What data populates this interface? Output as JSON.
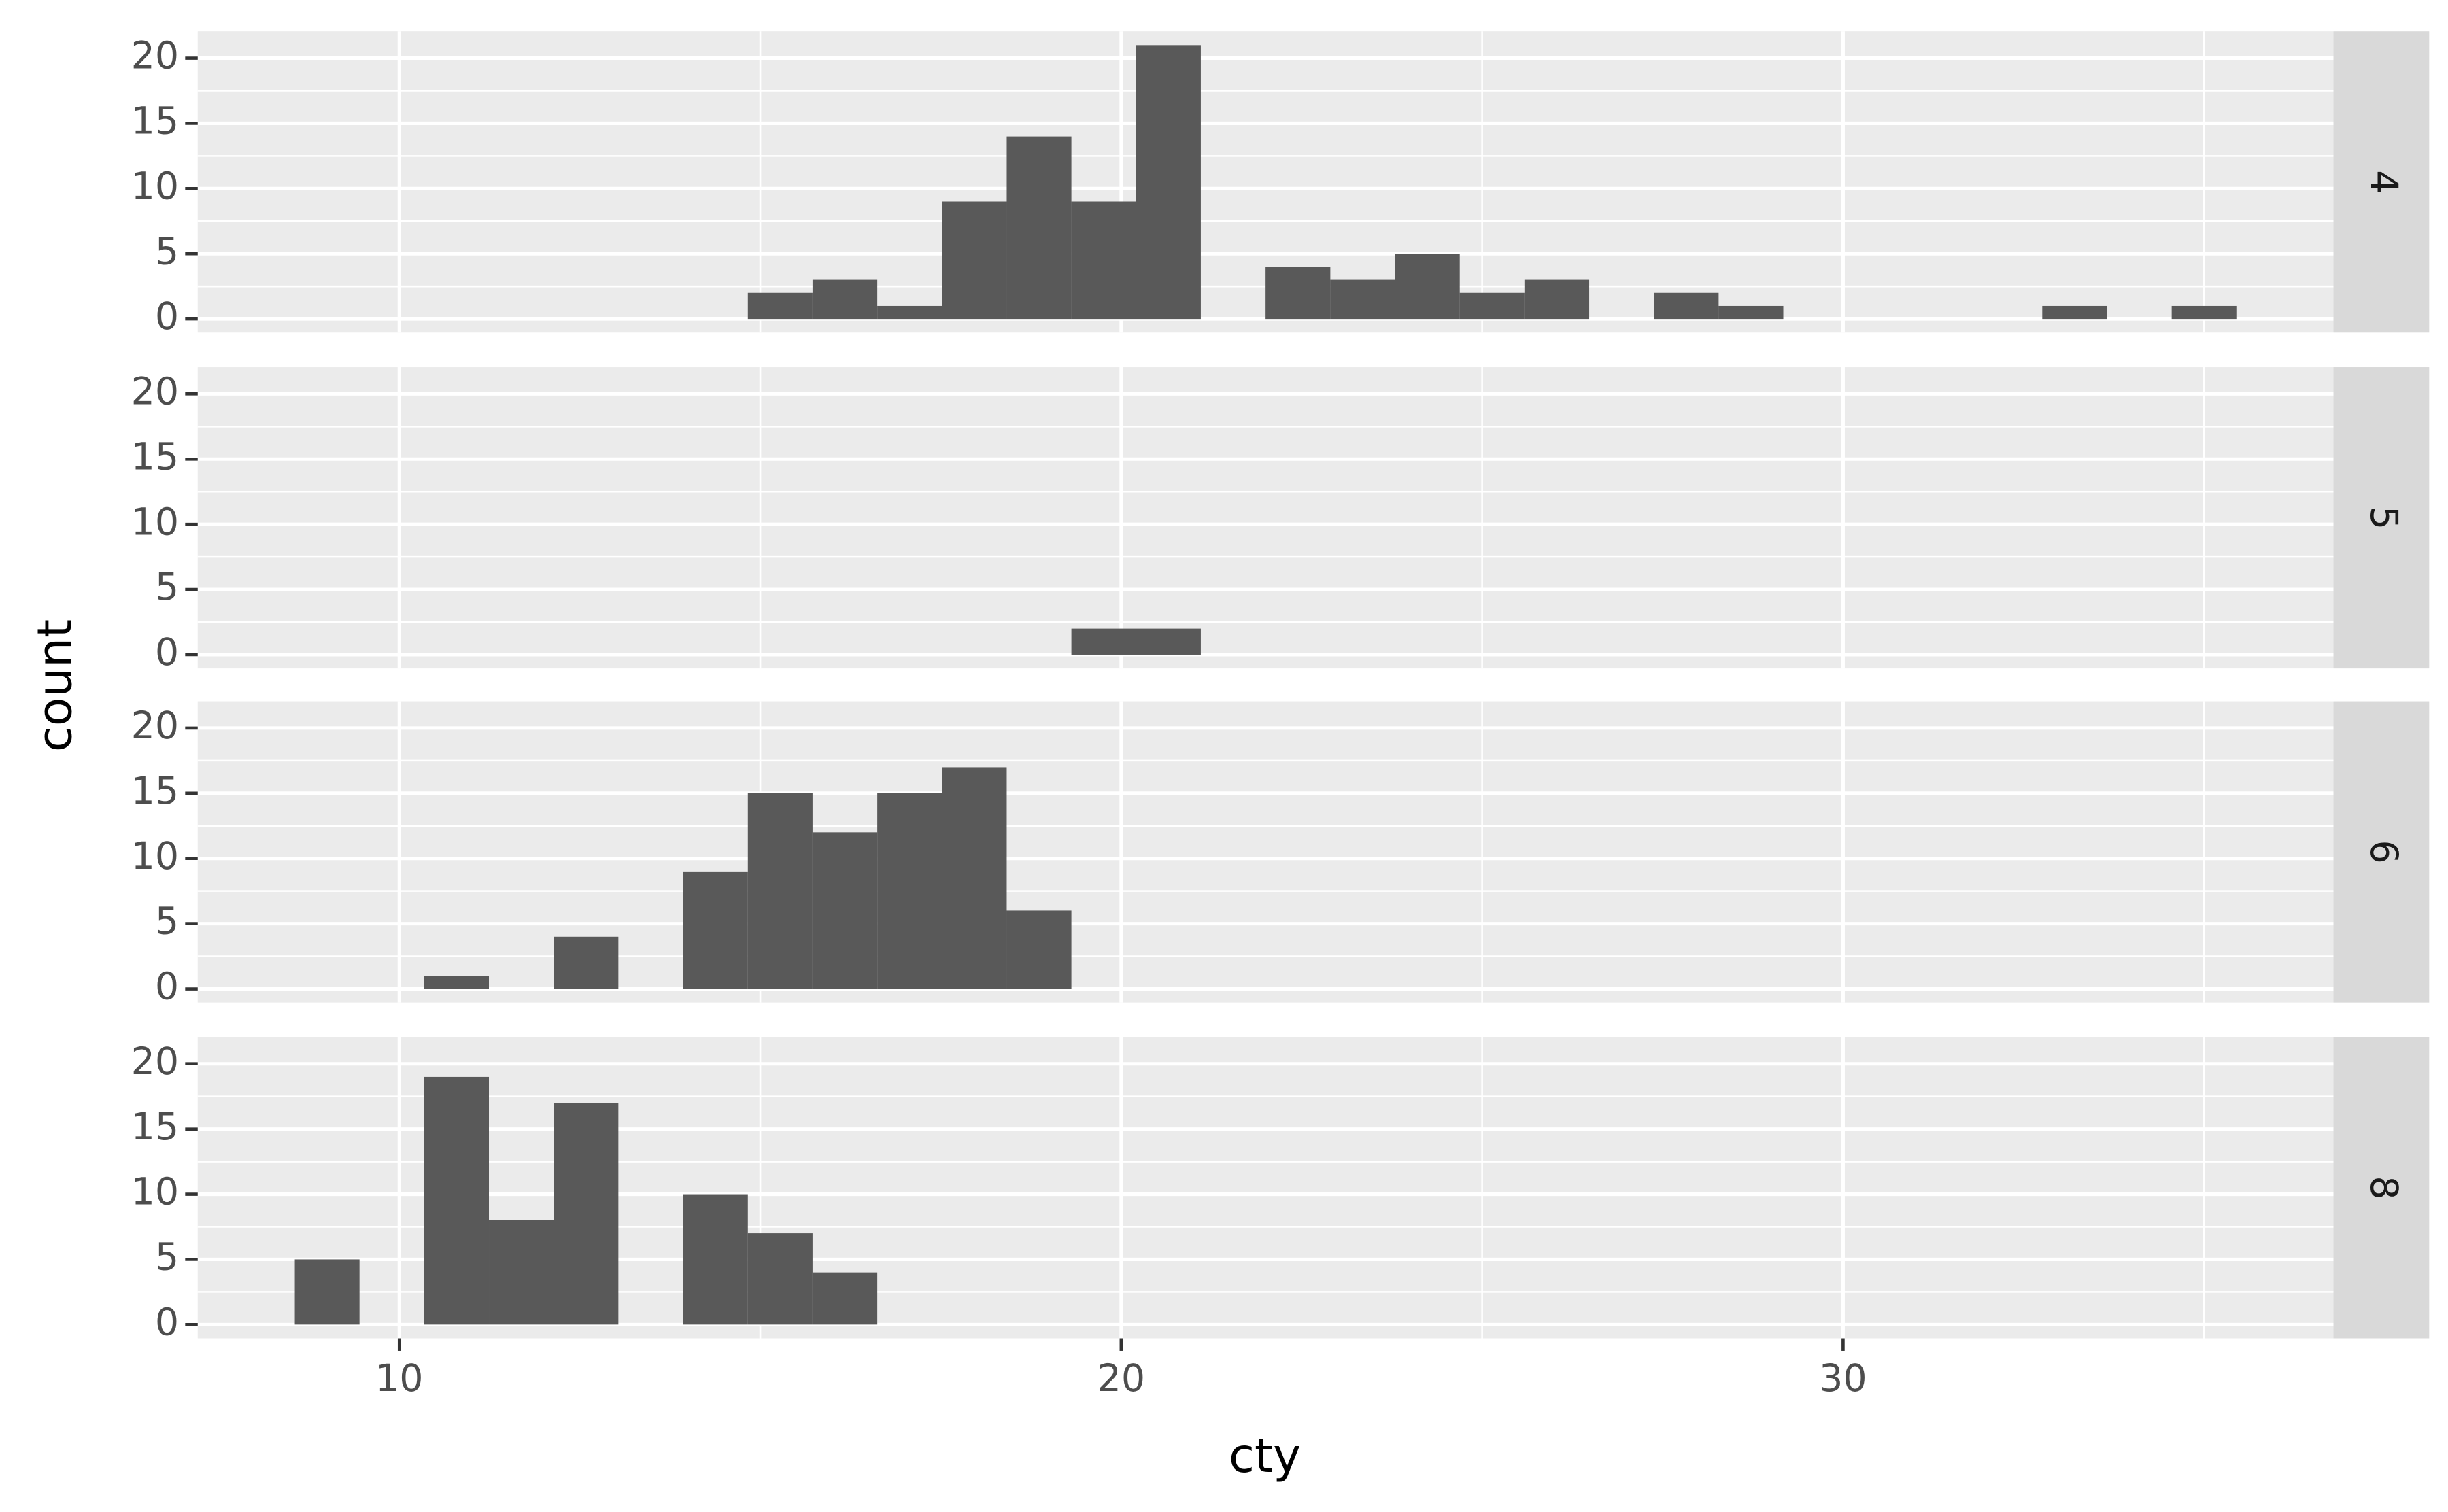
{
  "chart_data": {
    "type": "histogram",
    "xlabel": "cty",
    "ylabel": "count",
    "color": "#595959",
    "bins": [
      8.552,
      9.448,
      10.345,
      11.241,
      12.138,
      13.034,
      13.931,
      14.828,
      15.724,
      16.621,
      17.517,
      18.414,
      19.31,
      20.207,
      21.103,
      22.0,
      22.897,
      23.793,
      24.69,
      25.586,
      26.483,
      27.379,
      28.276,
      29.172,
      30.069,
      30.966,
      31.862,
      32.759,
      33.655,
      34.552,
      35.448
    ],
    "facets": [
      {
        "label": "4",
        "values": [
          0,
          0,
          0,
          0,
          0,
          0,
          0,
          2,
          3,
          1,
          9,
          14,
          9,
          21,
          0,
          4,
          3,
          5,
          2,
          3,
          0,
          2,
          1,
          0,
          0,
          0,
          0,
          1,
          0,
          1
        ]
      },
      {
        "label": "5",
        "values": [
          0,
          0,
          0,
          0,
          0,
          0,
          0,
          0,
          0,
          0,
          0,
          0,
          2,
          2,
          0,
          0,
          0,
          0,
          0,
          0,
          0,
          0,
          0,
          0,
          0,
          0,
          0,
          0,
          0,
          0
        ]
      },
      {
        "label": "6",
        "values": [
          0,
          0,
          1,
          0,
          4,
          0,
          9,
          15,
          12,
          15,
          17,
          6,
          0,
          0,
          0,
          0,
          0,
          0,
          0,
          0,
          0,
          0,
          0,
          0,
          0,
          0,
          0,
          0,
          0,
          0
        ]
      },
      {
        "label": "8",
        "values": [
          5,
          0,
          19,
          8,
          17,
          0,
          10,
          7,
          4,
          0,
          0,
          0,
          0,
          0,
          0,
          0,
          0,
          0,
          0,
          0,
          0,
          0,
          0,
          0,
          0,
          0,
          0,
          0,
          0,
          0
        ]
      }
    ],
    "xlim": [
      7.207,
      36.793
    ],
    "xticks": [
      10,
      20,
      30
    ],
    "ylim": [
      -1.05,
      22.05
    ],
    "yticks": [
      0,
      5,
      10,
      15,
      20
    ],
    "grid": true
  }
}
